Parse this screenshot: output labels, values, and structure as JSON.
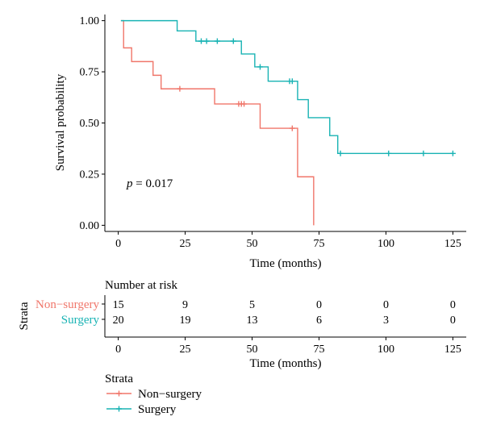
{
  "chart_data": {
    "type": "line",
    "subtype": "kaplan-meier-step",
    "title": "",
    "xlabel": "Time (months)",
    "ylabel": "Survival probability",
    "xlim": [
      -5,
      130
    ],
    "ylim": [
      -0.03,
      1.03
    ],
    "xticks": [
      0,
      25,
      50,
      75,
      100,
      125
    ],
    "yticks": [
      0.0,
      0.25,
      0.5,
      0.75,
      1.0
    ],
    "ytick_labels": [
      "0.00",
      "0.25",
      "0.50",
      "0.75",
      "1.00"
    ],
    "annotation": {
      "p_label": "p",
      "p_value": "= 0.017"
    },
    "series": [
      {
        "name": "Non−surgery",
        "color": "#f0766a",
        "steps": [
          [
            1,
            1.0
          ],
          [
            2,
            0.867
          ],
          [
            5,
            0.8
          ],
          [
            13,
            0.733
          ],
          [
            16,
            0.667
          ],
          [
            36,
            0.593
          ],
          [
            53,
            0.474
          ],
          [
            67,
            0.237
          ],
          [
            73,
            0.0
          ]
        ],
        "end_x": 73,
        "censored": [
          [
            23,
            0.667
          ],
          [
            45,
            0.593
          ],
          [
            46,
            0.593
          ],
          [
            47,
            0.593
          ],
          [
            65,
            0.474
          ]
        ]
      },
      {
        "name": "Surgery",
        "color": "#19b3b4",
        "steps": [
          [
            1,
            1.0
          ],
          [
            22,
            0.95
          ],
          [
            29,
            0.9
          ],
          [
            46,
            0.837
          ],
          [
            51,
            0.774
          ],
          [
            56,
            0.704
          ],
          [
            67,
            0.614
          ],
          [
            71,
            0.526
          ],
          [
            79,
            0.438
          ],
          [
            82,
            0.351
          ]
        ],
        "end_x": 125,
        "censored": [
          [
            31,
            0.9
          ],
          [
            33,
            0.9
          ],
          [
            37,
            0.9
          ],
          [
            43,
            0.9
          ],
          [
            53,
            0.774
          ],
          [
            64,
            0.704
          ],
          [
            65,
            0.704
          ],
          [
            83,
            0.351
          ],
          [
            101,
            0.351
          ],
          [
            114,
            0.351
          ],
          [
            125,
            0.351
          ]
        ]
      }
    ],
    "legend": {
      "title": "Strata",
      "placement": "bottom-left"
    }
  },
  "risk_table": {
    "title": "Number at risk",
    "ylabel": "Strata",
    "xlabel": "Time (months)",
    "times": [
      0,
      25,
      50,
      75,
      100,
      125
    ],
    "rows": [
      {
        "name": "Non−surgery",
        "color": "#f0766a",
        "counts": [
          15,
          9,
          5,
          0,
          0,
          0
        ]
      },
      {
        "name": "Surgery",
        "color": "#19b3b4",
        "counts": [
          20,
          19,
          13,
          6,
          3,
          0
        ]
      }
    ]
  }
}
